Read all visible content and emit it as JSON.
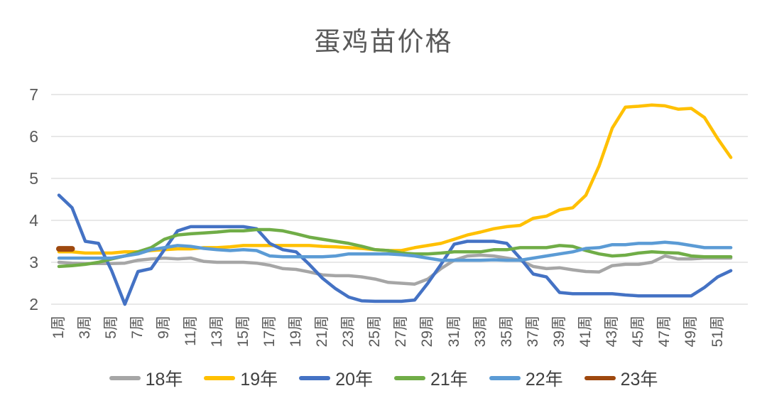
{
  "title": "蛋鸡苗价格",
  "axes": {
    "y_ticks": [
      7,
      6,
      5,
      4,
      3,
      2
    ],
    "x_tick_labels": [
      "1周",
      "3周",
      "5周",
      "7周",
      "9周",
      "11周",
      "13周",
      "15周",
      "17周",
      "19周",
      "21周",
      "23周",
      "25周",
      "27周",
      "29周",
      "31周",
      "33周",
      "35周",
      "37周",
      "39周",
      "41周",
      "43周",
      "45周",
      "47周",
      "49周",
      "51周"
    ]
  },
  "legend": [
    {
      "label": "18年",
      "color": "#A6A6A6"
    },
    {
      "label": "19年",
      "color": "#FFC000"
    },
    {
      "label": "20年",
      "color": "#4472C4"
    },
    {
      "label": "21年",
      "color": "#70AD47"
    },
    {
      "label": "22年",
      "color": "#5B9BD5"
    },
    {
      "label": "23年",
      "color": "#9E480E"
    }
  ],
  "chart_data": {
    "type": "line",
    "title": "蛋鸡苗价格",
    "xlabel": "周",
    "ylabel": "",
    "ylim": [
      2,
      7
    ],
    "grid": "horizontal",
    "legend_position": "bottom",
    "weeks": [
      1,
      2,
      3,
      4,
      5,
      6,
      7,
      8,
      9,
      10,
      11,
      12,
      13,
      14,
      15,
      16,
      17,
      18,
      19,
      20,
      21,
      22,
      23,
      24,
      25,
      26,
      27,
      28,
      29,
      30,
      31,
      32,
      33,
      34,
      35,
      36,
      37,
      38,
      39,
      40,
      41,
      42,
      43,
      44,
      45,
      46,
      47,
      48,
      49,
      50,
      51,
      52
    ],
    "series": [
      {
        "name": "18年",
        "color": "#A6A6A6",
        "values": [
          3.0,
          2.98,
          2.97,
          2.97,
          2.97,
          2.98,
          3.05,
          3.08,
          3.1,
          3.08,
          3.1,
          3.02,
          3.0,
          3.0,
          3.0,
          2.98,
          2.93,
          2.85,
          2.83,
          2.77,
          2.7,
          2.68,
          2.68,
          2.65,
          2.6,
          2.52,
          2.5,
          2.48,
          2.6,
          2.85,
          3.05,
          3.15,
          3.17,
          3.15,
          3.1,
          3.05,
          2.9,
          2.85,
          2.87,
          2.82,
          2.78,
          2.77,
          2.92,
          2.95,
          2.95,
          3.0,
          3.15,
          3.08,
          3.08,
          3.1,
          3.1,
          3.1
        ]
      },
      {
        "name": "19年",
        "color": "#FFC000",
        "values": [
          3.25,
          3.25,
          3.22,
          3.22,
          3.22,
          3.25,
          3.25,
          3.28,
          3.3,
          3.32,
          3.32,
          3.35,
          3.35,
          3.37,
          3.4,
          3.4,
          3.4,
          3.4,
          3.4,
          3.4,
          3.38,
          3.37,
          3.35,
          3.33,
          3.3,
          3.28,
          3.28,
          3.35,
          3.4,
          3.45,
          3.55,
          3.65,
          3.72,
          3.8,
          3.85,
          3.88,
          4.05,
          4.1,
          4.25,
          4.3,
          4.6,
          5.3,
          6.2,
          6.7,
          6.72,
          6.75,
          6.73,
          6.65,
          6.67,
          6.45,
          5.95,
          5.5
        ]
      },
      {
        "name": "20年",
        "color": "#4472C4",
        "values": [
          4.6,
          4.3,
          3.5,
          3.45,
          2.8,
          2.0,
          2.78,
          2.85,
          3.3,
          3.75,
          3.85,
          3.85,
          3.85,
          3.85,
          3.85,
          3.8,
          3.45,
          3.3,
          3.25,
          2.95,
          2.62,
          2.37,
          2.17,
          2.08,
          2.07,
          2.07,
          2.07,
          2.1,
          2.5,
          2.95,
          3.43,
          3.5,
          3.5,
          3.5,
          3.45,
          3.1,
          2.72,
          2.65,
          2.28,
          2.25,
          2.25,
          2.25,
          2.25,
          2.22,
          2.2,
          2.2,
          2.2,
          2.2,
          2.2,
          2.4,
          2.65,
          2.8
        ]
      },
      {
        "name": "21年",
        "color": "#70AD47",
        "values": [
          2.9,
          2.92,
          2.95,
          3.0,
          3.08,
          3.15,
          3.25,
          3.35,
          3.55,
          3.65,
          3.68,
          3.7,
          3.72,
          3.75,
          3.75,
          3.78,
          3.78,
          3.75,
          3.68,
          3.6,
          3.55,
          3.5,
          3.45,
          3.38,
          3.3,
          3.28,
          3.22,
          3.2,
          3.2,
          3.22,
          3.25,
          3.25,
          3.25,
          3.3,
          3.3,
          3.35,
          3.35,
          3.35,
          3.4,
          3.38,
          3.28,
          3.2,
          3.15,
          3.17,
          3.22,
          3.25,
          3.23,
          3.22,
          3.15,
          3.13,
          3.13,
          3.13
        ]
      },
      {
        "name": "22年",
        "color": "#5B9BD5",
        "values": [
          3.1,
          3.1,
          3.1,
          3.1,
          3.1,
          3.15,
          3.2,
          3.3,
          3.35,
          3.4,
          3.38,
          3.33,
          3.3,
          3.28,
          3.3,
          3.28,
          3.15,
          3.13,
          3.13,
          3.13,
          3.13,
          3.15,
          3.2,
          3.2,
          3.2,
          3.2,
          3.18,
          3.15,
          3.1,
          3.05,
          3.05,
          3.05,
          3.05,
          3.06,
          3.05,
          3.05,
          3.1,
          3.15,
          3.2,
          3.25,
          3.33,
          3.35,
          3.42,
          3.42,
          3.45,
          3.45,
          3.48,
          3.45,
          3.4,
          3.35,
          3.35,
          3.35
        ]
      },
      {
        "name": "23年",
        "color": "#9E480E",
        "values": [
          3.32,
          3.32
        ]
      }
    ]
  }
}
